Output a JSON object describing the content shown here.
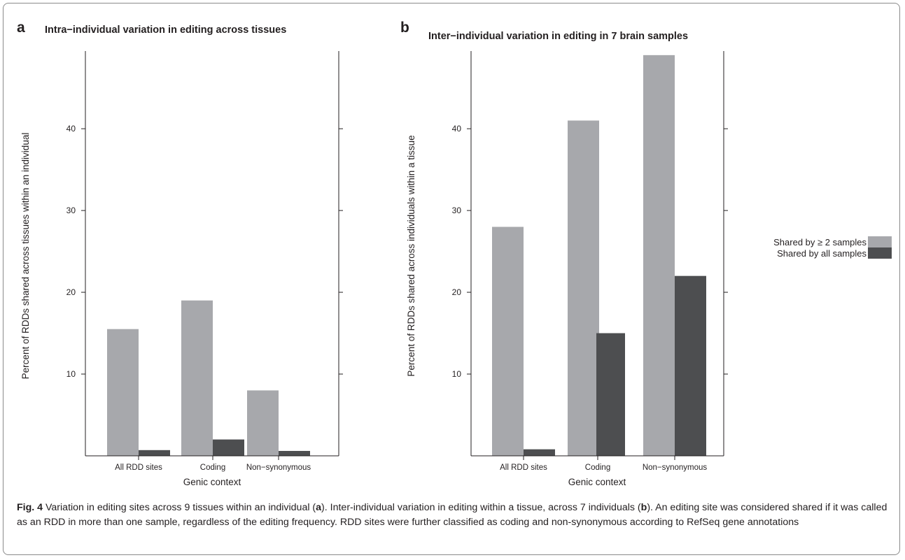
{
  "colors": {
    "shared_ge2": "#a7a8ac",
    "shared_all": "#4d4e50",
    "axis": "#231f20"
  },
  "chart_data": [
    {
      "type": "bar",
      "panel": "a",
      "title": "Intra−individual variation in editing across tissues",
      "xlabel": "Genic context",
      "ylabel": "Percent of RDDs shared across tissues within an individual",
      "categories": [
        "All RDD sites",
        "Coding",
        "Non−synonymous"
      ],
      "yticks": [
        10,
        20,
        30,
        40
      ],
      "ylim": [
        0,
        49.5
      ],
      "series": [
        {
          "name": "Shared by ≥ 2 samples",
          "values": [
            15.5,
            19,
            8
          ]
        },
        {
          "name": "Shared by all samples",
          "values": [
            0.7,
            2,
            0.6
          ]
        }
      ]
    },
    {
      "type": "bar",
      "panel": "b",
      "title": "Inter−individual variation in editing in 7 brain samples",
      "xlabel": "Genic context",
      "ylabel": "Percent of RDDs shared across individuals within a tissue",
      "categories": [
        "All RDD sites",
        "Coding",
        "Non−synonymous"
      ],
      "yticks": [
        10,
        20,
        30,
        40
      ],
      "ylim": [
        0,
        49.5
      ],
      "series": [
        {
          "name": "Shared by ≥ 2 samples",
          "values": [
            28,
            41,
            49
          ]
        },
        {
          "name": "Shared by all samples",
          "values": [
            0.8,
            15,
            22
          ]
        }
      ]
    }
  ],
  "legend": {
    "items": [
      "Shared by ≥ 2 samples",
      "Shared by all samples"
    ]
  },
  "caption": {
    "fig_label": "Fig. 4",
    "part1": " Variation in editing sites across 9 tissues within an individual (",
    "ref_a": "a",
    "part2": "). Inter-individual variation in editing within a tissue, across 7 individuals (",
    "ref_b": "b",
    "part3": "). An editing site was considered shared if it was called as an RDD in more than one sample, regardless of the editing frequency. RDD sites were further classified as coding and non-synonymous according to RefSeq gene annotations"
  }
}
